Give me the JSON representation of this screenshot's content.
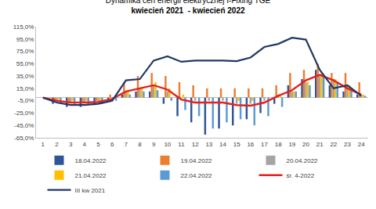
{
  "chart_data": {
    "type": "bar",
    "title": "Dynamika cen energii elektrycznej I-Fixing TGE",
    "subtitle": "kwiecień 2021  - kwiecień 2022",
    "categories": [
      "1",
      "2",
      "3",
      "4",
      "5",
      "6",
      "7",
      "8",
      "9",
      "10",
      "11",
      "12",
      "13",
      "14",
      "15",
      "16",
      "17",
      "18",
      "19",
      "20",
      "21",
      "22",
      "23",
      "24"
    ],
    "ylim": [
      -65,
      115
    ],
    "yticks": [
      {
        "value": -65,
        "label": "-65,0%"
      },
      {
        "value": -45,
        "label": "-45,0%"
      },
      {
        "value": -25,
        "label": "-25,0%"
      },
      {
        "value": -5,
        "label": "-5,0%"
      },
      {
        "value": 15,
        "label": "15,0%"
      },
      {
        "value": 35,
        "label": "35,0%"
      },
      {
        "value": 55,
        "label": "55,0%"
      },
      {
        "value": 75,
        "label": "75,0%"
      },
      {
        "value": 95,
        "label": "95,0%"
      },
      {
        "value": 115,
        "label": "115,0%"
      }
    ],
    "grid": false,
    "legend": "bottom",
    "series": [
      {
        "name": "18.04.2022",
        "type": "bar",
        "color": "#2f5597",
        "values": [
          0,
          -10,
          -15,
          -15,
          -12,
          -5,
          5,
          10,
          10,
          -10,
          -30,
          -40,
          -60,
          -50,
          -45,
          -35,
          -25,
          -10,
          20,
          30,
          45,
          20,
          10,
          5
        ]
      },
      {
        "name": "19.04.2022",
        "type": "bar",
        "color": "#ed7d31",
        "values": [
          0,
          -5,
          -8,
          -8,
          -5,
          5,
          25,
          35,
          40,
          35,
          25,
          20,
          15,
          15,
          15,
          15,
          15,
          20,
          40,
          45,
          55,
          40,
          40,
          25
        ]
      },
      {
        "name": "20.04.2022",
        "type": "bar",
        "color": "#a5a5a5",
        "values": [
          0,
          -5,
          -8,
          -8,
          -6,
          0,
          10,
          15,
          20,
          10,
          0,
          -5,
          -5,
          -5,
          -10,
          -10,
          -5,
          5,
          10,
          25,
          35,
          30,
          20,
          5
        ]
      },
      {
        "name": "21.04.2022",
        "type": "bar",
        "color": "#ffc000",
        "values": [
          0,
          -3,
          -5,
          -5,
          -5,
          0,
          10,
          15,
          25,
          15,
          5,
          0,
          0,
          0,
          -5,
          -5,
          0,
          5,
          10,
          25,
          40,
          30,
          20,
          5
        ]
      },
      {
        "name": "22.04.2022",
        "type": "bar",
        "color": "#5b9bd5",
        "values": [
          0,
          -8,
          -12,
          -12,
          -10,
          -5,
          5,
          10,
          12,
          -5,
          -20,
          -30,
          -50,
          -40,
          -35,
          -45,
          -30,
          -15,
          10,
          20,
          35,
          25,
          15,
          3
        ]
      },
      {
        "name": "śr. 4-2022",
        "type": "line",
        "color": "#e8201c",
        "values": [
          0,
          -5,
          -8,
          -8,
          -7,
          -2,
          10,
          15,
          20,
          13,
          -3,
          -8,
          -8,
          -8,
          -12,
          -13,
          -8,
          3,
          12,
          28,
          37,
          28,
          15,
          5
        ]
      },
      {
        "name": "III kw 2021",
        "type": "line",
        "color": "#203864",
        "values": [
          0,
          -8,
          -12,
          -12,
          -10,
          -5,
          28,
          30,
          60,
          67,
          58,
          60,
          60,
          60,
          59,
          65,
          82,
          87,
          97,
          94,
          45,
          15,
          20,
          3
        ]
      }
    ]
  }
}
